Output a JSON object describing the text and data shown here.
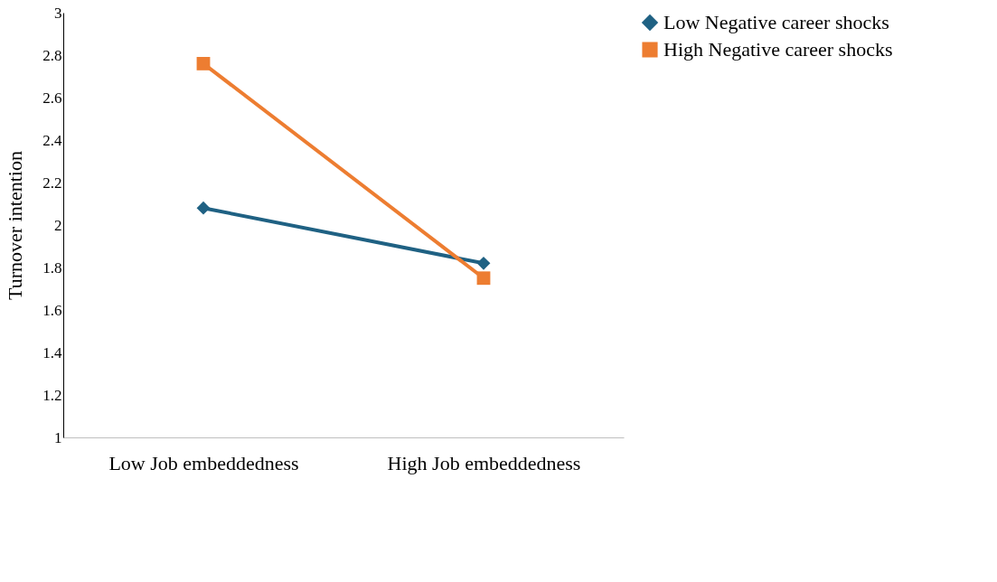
{
  "chart_data": {
    "type": "line",
    "ylabel": "Turnover intention",
    "categories": [
      "Low Job embeddedness",
      "High Job embeddedness"
    ],
    "series": [
      {
        "name": "Low Negative career shocks",
        "color": "#1f6183",
        "marker": "diamond",
        "values": [
          2.08,
          1.82
        ]
      },
      {
        "name": "High Negative career shocks",
        "color": "#ed7d31",
        "marker": "square",
        "values": [
          2.76,
          1.75
        ]
      }
    ],
    "ylim": [
      1,
      3
    ],
    "yticks": [
      1,
      1.2,
      1.4,
      1.6,
      1.8,
      2,
      2.2,
      2.4,
      2.6,
      2.8,
      3
    ],
    "grid": false,
    "legend": "right"
  }
}
